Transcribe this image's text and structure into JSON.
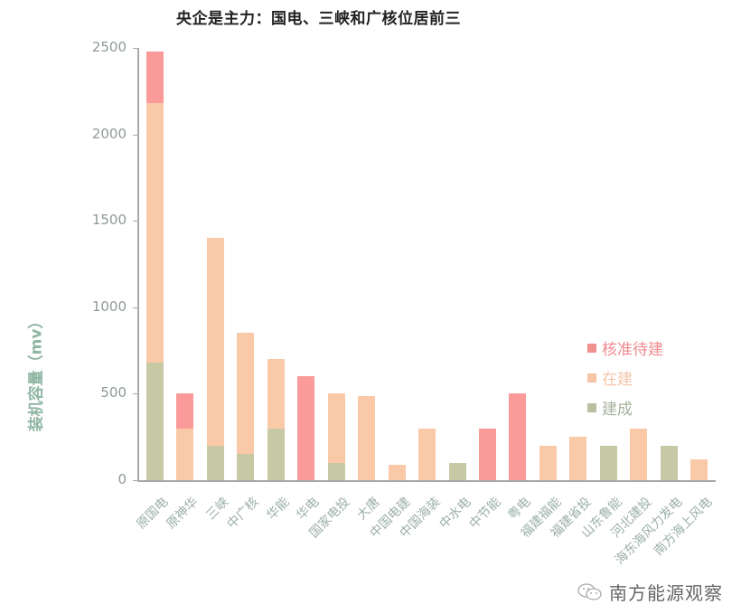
{
  "chart_data": {
    "type": "bar",
    "stacked": true,
    "title": "央企是主力：国电、三峡和广核位居前三",
    "xlabel": "",
    "ylabel": "装机容量（mv）",
    "ylim": [
      0,
      2500
    ],
    "yticks": [
      0,
      500,
      1000,
      1500,
      2000,
      2500
    ],
    "grid": false,
    "legend_position": "right",
    "categories": [
      "原国电",
      "原神华",
      "三峡",
      "中广核",
      "华能",
      "华电",
      "国家电投",
      "大唐",
      "中国电建",
      "中国海装",
      "中水电",
      "中节能",
      "粤电",
      "福建福能",
      "福建省投",
      "山东鲁能",
      "河北建投",
      "海东海风力发电",
      "南方海上风电"
    ],
    "series": [
      {
        "name": "建成",
        "color": "#c7c8a4",
        "values": [
          680,
          0,
          200,
          150,
          300,
          0,
          100,
          0,
          0,
          0,
          100,
          0,
          0,
          0,
          0,
          200,
          0,
          200,
          0
        ]
      },
      {
        "name": "在建",
        "color": "#f9c9a8",
        "values": [
          1500,
          300,
          1200,
          700,
          400,
          0,
          400,
          485,
          90,
          300,
          0,
          0,
          0,
          200,
          250,
          0,
          300,
          0,
          120
        ]
      },
      {
        "name": "核准待建",
        "color": "#fa9a99",
        "values": [
          300,
          200,
          0,
          0,
          0,
          600,
          0,
          0,
          0,
          0,
          0,
          300,
          500,
          0,
          0,
          0,
          0,
          0,
          0
        ]
      }
    ]
  },
  "legend": {
    "items": [
      {
        "label": "核准待建",
        "color": "#f28f8f"
      },
      {
        "label": "在建",
        "color": "#f7c4a5"
      },
      {
        "label": "建成",
        "color": "#b9bfa0"
      }
    ]
  },
  "watermark": {
    "text": "南方能源观察",
    "icon": "wechat-icon"
  }
}
